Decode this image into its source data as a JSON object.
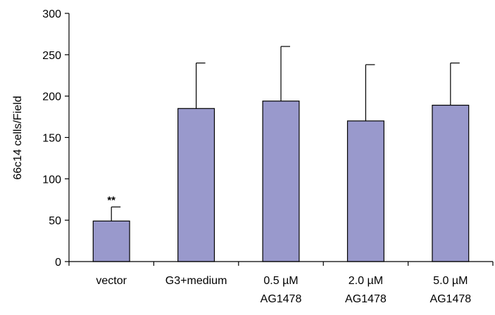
{
  "chart_data": {
    "type": "bar",
    "title": "",
    "xlabel": "",
    "ylabel": "66c14 cells/Field",
    "ylim": [
      0,
      300
    ],
    "yticks": [
      0,
      50,
      100,
      150,
      200,
      250,
      300
    ],
    "grid": false,
    "categories": [
      [
        "vector"
      ],
      [
        "G3+medium"
      ],
      [
        "0.5 µM",
        "AG1478"
      ],
      [
        "2.0 µM",
        "AG1478"
      ],
      [
        "5.0 µM",
        "AG1478"
      ]
    ],
    "values": [
      49,
      185,
      194,
      170,
      189
    ],
    "error_upper": [
      66,
      240,
      260,
      238,
      240
    ],
    "annotations": [
      {
        "category_index": 0,
        "text": "**"
      }
    ],
    "colors": {
      "bar_fill": "#9999cc",
      "bar_stroke": "#000000"
    }
  }
}
